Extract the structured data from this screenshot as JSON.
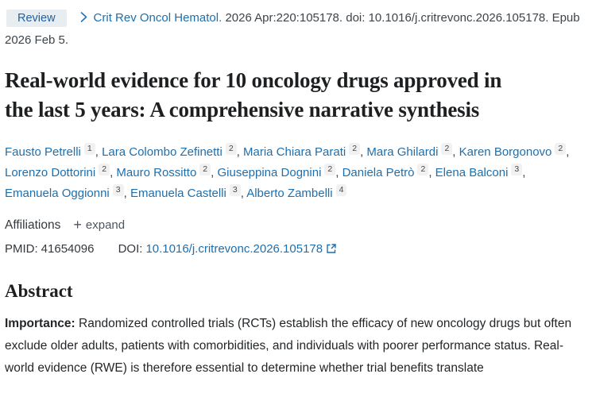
{
  "page": {
    "link_color": "#1d6fae",
    "badge_bg": "#e8edf2",
    "badge_text_color": "#20609f",
    "text_color": "#212427"
  },
  "header": {
    "publication_type": "Review",
    "journal_link": "Crit Rev Oncol Hematol.",
    "citation": "2026 Apr:220:105178. doi: 10.1016/j.critrevonc.2026.105178. Epub 2026 Feb 5."
  },
  "title": "Real-world evidence for 10 oncology drugs approved in the last 5 years: A comprehensive narrative synthesis",
  "authors_separator": ", ",
  "authors": [
    {
      "name": "Fausto Petrelli",
      "sup": "1"
    },
    {
      "name": "Lara Colombo Zefinetti",
      "sup": "2"
    },
    {
      "name": "Maria Chiara Parati",
      "sup": "2"
    },
    {
      "name": "Mara Ghilardi",
      "sup": "2"
    },
    {
      "name": "Karen Borgonovo",
      "sup": "2"
    },
    {
      "name": "Lorenzo Dottorini",
      "sup": "2"
    },
    {
      "name": "Mauro Rossitto",
      "sup": "2"
    },
    {
      "name": "Giuseppina Dognini",
      "sup": "2"
    },
    {
      "name": "Daniela Petrò",
      "sup": "2"
    },
    {
      "name": "Elena Balconi",
      "sup": "3"
    },
    {
      "name": "Emanuela Oggionni",
      "sup": "3"
    },
    {
      "name": "Emanuela Castelli",
      "sup": "3"
    },
    {
      "name": "Alberto Zambelli",
      "sup": "4"
    }
  ],
  "affiliations": {
    "label": "Affiliations",
    "expand_label": "expand"
  },
  "icons": {
    "plus_glyph": "+"
  },
  "identifiers": {
    "pmid_label": "PMID:",
    "pmid": "41654096",
    "doi_label": "DOI:",
    "doi": "10.1016/j.critrevonc.2026.105178"
  },
  "abstract": {
    "heading": "Abstract",
    "sections": [
      {
        "label": "Importance:",
        "text": "Randomized controlled trials (RCTs) establish the efficacy of new oncology drugs but often exclude older adults, patients with comorbidities, and individuals with poorer performance status. Real-world evidence (RWE) is therefore essential to determine whether trial benefits translate"
      }
    ]
  }
}
